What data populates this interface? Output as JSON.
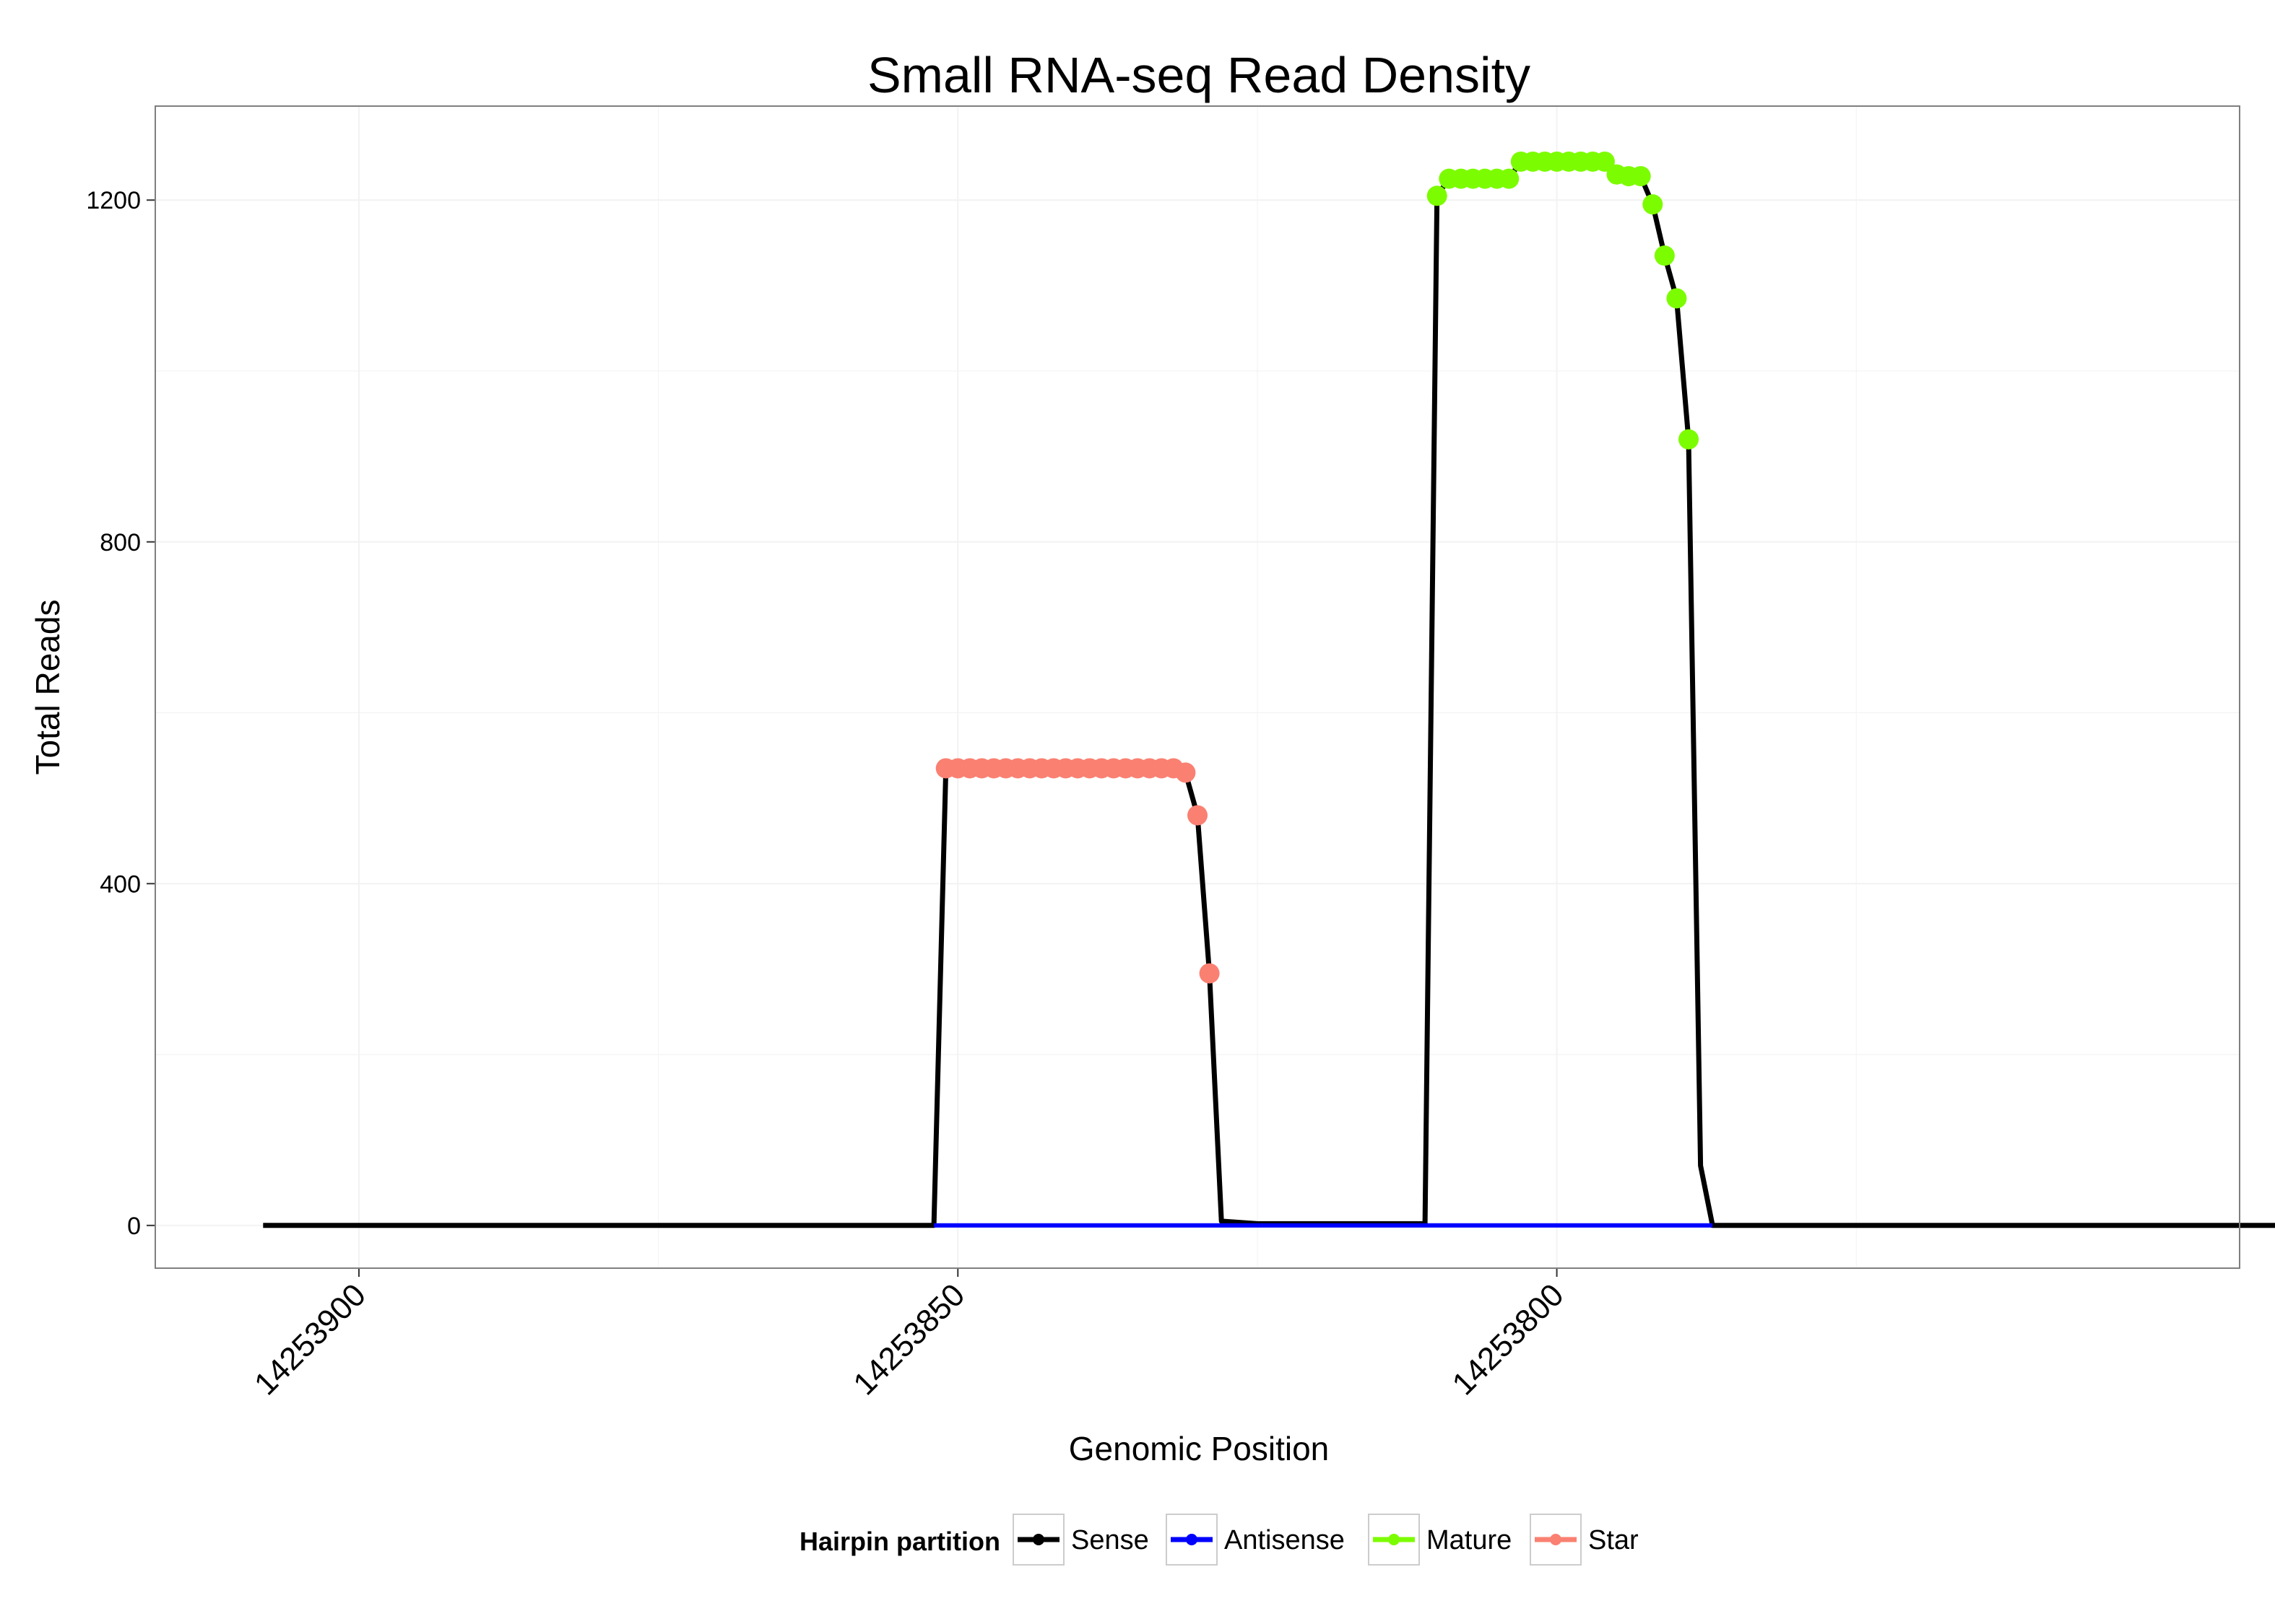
{
  "chart_data": {
    "type": "line",
    "title": "Small RNA-seq Read Density",
    "xlabel": "Genomic Position",
    "ylabel": "Total Reads",
    "x_reversed": true,
    "xlim": [
      14253917,
      14253743
    ],
    "ylim": [
      -50,
      1310
    ],
    "x_ticks": [
      14253900,
      14253850,
      14253800
    ],
    "y_ticks": [
      0,
      400,
      800,
      1200
    ],
    "grid": true,
    "legend": {
      "title": "Hairpin partition",
      "position": "bottom",
      "entries": [
        "Sense",
        "Antisense",
        "Mature",
        "Star"
      ]
    },
    "colors": {
      "Sense": "#000000",
      "Antisense": "#0000ff",
      "Mature": "#7cfc00",
      "Star": "#fa8072",
      "panel_border": "#7f7f7f",
      "grid": "#f2f2f2"
    },
    "series": [
      {
        "name": "Sense",
        "points": [
          [
            14253908,
            0
          ],
          [
            14253852,
            0
          ],
          [
            14253851,
            535
          ],
          [
            14253850,
            535
          ],
          [
            14253849,
            535
          ],
          [
            14253848,
            535
          ],
          [
            14253847,
            535
          ],
          [
            14253846,
            535
          ],
          [
            14253845,
            535
          ],
          [
            14253844,
            535
          ],
          [
            14253843,
            535
          ],
          [
            14253842,
            535
          ],
          [
            14253841,
            535
          ],
          [
            14253840,
            535
          ],
          [
            14253839,
            535
          ],
          [
            14253838,
            535
          ],
          [
            14253837,
            535
          ],
          [
            14253836,
            535
          ],
          [
            14253835,
            535
          ],
          [
            14253834,
            535
          ],
          [
            14253833,
            535
          ],
          [
            14253832,
            535
          ],
          [
            14253831,
            530
          ],
          [
            14253830,
            480
          ],
          [
            14253829,
            295
          ],
          [
            14253828,
            5
          ],
          [
            14253825,
            2
          ],
          [
            14253811,
            2
          ],
          [
            14253810,
            1205
          ],
          [
            14253809,
            1225
          ],
          [
            14253808,
            1225
          ],
          [
            14253807,
            1225
          ],
          [
            14253806,
            1225
          ],
          [
            14253805,
            1225
          ],
          [
            14253804,
            1225
          ],
          [
            14253803,
            1245
          ],
          [
            14253802,
            1245
          ],
          [
            14253801,
            1245
          ],
          [
            14253800,
            1245
          ],
          [
            14253799,
            1245
          ],
          [
            14253798,
            1245
          ],
          [
            14253797,
            1245
          ],
          [
            14253796,
            1245
          ],
          [
            14253795,
            1230
          ],
          [
            14253794,
            1228
          ],
          [
            14253793,
            1228
          ],
          [
            14253792,
            1195
          ],
          [
            14253791,
            1135
          ],
          [
            14253790,
            1085
          ],
          [
            14253789,
            920
          ],
          [
            14253788,
            70
          ],
          [
            14253787,
            0
          ],
          [
            14253734,
            0
          ]
        ]
      },
      {
        "name": "Antisense",
        "points": [
          [
            14253852,
            0
          ],
          [
            14253787,
            0
          ]
        ]
      },
      {
        "name": "Star",
        "points": [
          [
            14253851,
            535
          ],
          [
            14253850,
            535
          ],
          [
            14253849,
            535
          ],
          [
            14253848,
            535
          ],
          [
            14253847,
            535
          ],
          [
            14253846,
            535
          ],
          [
            14253845,
            535
          ],
          [
            14253844,
            535
          ],
          [
            14253843,
            535
          ],
          [
            14253842,
            535
          ],
          [
            14253841,
            535
          ],
          [
            14253840,
            535
          ],
          [
            14253839,
            535
          ],
          [
            14253838,
            535
          ],
          [
            14253837,
            535
          ],
          [
            14253836,
            535
          ],
          [
            14253835,
            535
          ],
          [
            14253834,
            535
          ],
          [
            14253833,
            535
          ],
          [
            14253832,
            535
          ],
          [
            14253831,
            530
          ],
          [
            14253830,
            480
          ],
          [
            14253829,
            295
          ]
        ]
      },
      {
        "name": "Mature",
        "points": [
          [
            14253810,
            1205
          ],
          [
            14253809,
            1225
          ],
          [
            14253808,
            1225
          ],
          [
            14253807,
            1225
          ],
          [
            14253806,
            1225
          ],
          [
            14253805,
            1225
          ],
          [
            14253804,
            1225
          ],
          [
            14253803,
            1245
          ],
          [
            14253802,
            1245
          ],
          [
            14253801,
            1245
          ],
          [
            14253800,
            1245
          ],
          [
            14253799,
            1245
          ],
          [
            14253798,
            1245
          ],
          [
            14253797,
            1245
          ],
          [
            14253796,
            1245
          ],
          [
            14253795,
            1230
          ],
          [
            14253794,
            1228
          ],
          [
            14253793,
            1228
          ],
          [
            14253792,
            1195
          ],
          [
            14253791,
            1135
          ],
          [
            14253790,
            1085
          ],
          [
            14253789,
            920
          ]
        ]
      }
    ]
  }
}
